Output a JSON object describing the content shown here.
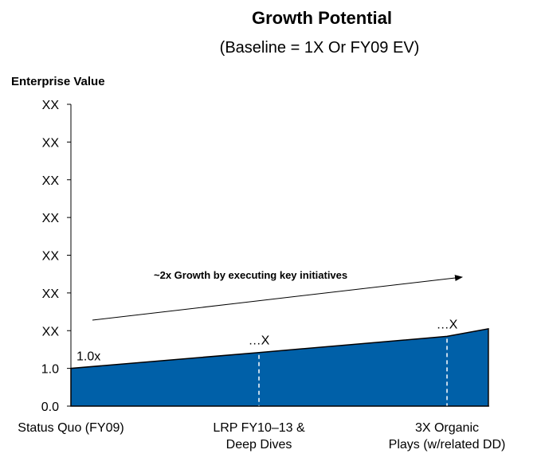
{
  "chart_data": {
    "type": "area",
    "title": "Growth Potential",
    "subtitle": "(Baseline = 1X Or FY09 EV)",
    "xlabel": "",
    "ylabel": "Enterprise Value",
    "y_tick_labels": [
      "0.0",
      "1.0",
      "XX",
      "XX",
      "XX",
      "XX",
      "XX",
      "XX",
      "XX"
    ],
    "categories": [
      [
        "Status Quo (FY09)"
      ],
      [
        "LRP FY10–13 &",
        "Deep Dives"
      ],
      [
        "3X Organic",
        "Plays (w/related DD)"
      ]
    ],
    "series": [
      {
        "x": [
          0,
          1,
          2,
          2.22
        ],
        "values": [
          1.0,
          1.42,
          1.85,
          2.05
        ]
      }
    ],
    "ylim": [
      0,
      8
    ],
    "area_color": "#0060a8",
    "point_labels": [
      "1.0x",
      "…X",
      "…X"
    ],
    "annotation": "~2x Growth by executing key initiatives",
    "grid": false,
    "legend": "none"
  }
}
